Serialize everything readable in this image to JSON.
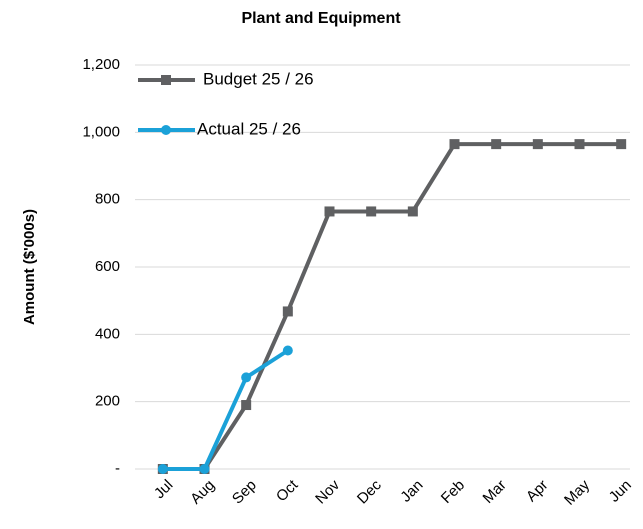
{
  "chart_data": {
    "type": "line",
    "title": "Plant and Equipment",
    "y_label": "Amount ($'000s)",
    "categories": [
      "Jul",
      "Aug",
      "Sep",
      "Oct",
      "Nov",
      "Dec",
      "Jan",
      "Feb",
      "Mar",
      "Apr",
      "May",
      "Jun"
    ],
    "series": [
      {
        "name": "Budget 25 / 26",
        "color": "#5f6062",
        "marker": "square",
        "values": [
          0,
          0,
          190,
          468,
          765,
          765,
          765,
          965,
          965,
          965,
          965,
          965
        ]
      },
      {
        "name": "Actual 25 / 26",
        "color": "#1ba1d8",
        "marker": "circle",
        "values": [
          0,
          0,
          272,
          352,
          null,
          null,
          null,
          null,
          null,
          null,
          null,
          null
        ]
      }
    ],
    "ylim": [
      0,
      1200
    ],
    "yticks": [
      {
        "value": 0,
        "label": "-"
      },
      200,
      400,
      600,
      800,
      {
        "value": 1000,
        "label": "1,000"
      },
      {
        "value": 1200,
        "label": "1,200"
      }
    ],
    "grid": true,
    "legend": "top-left"
  }
}
